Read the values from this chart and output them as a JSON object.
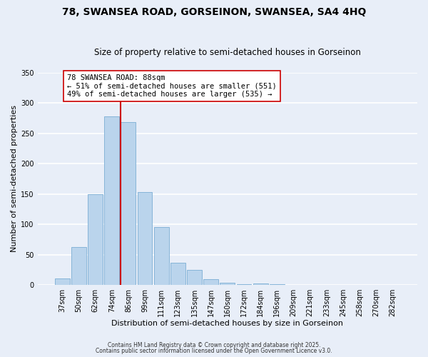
{
  "title": "78, SWANSEA ROAD, GORSEINON, SWANSEA, SA4 4HQ",
  "subtitle": "Size of property relative to semi-detached houses in Gorseinon",
  "xlabel": "Distribution of semi-detached houses by size in Gorseinon",
  "ylabel": "Number of semi-detached properties",
  "bin_labels": [
    "37sqm",
    "50sqm",
    "62sqm",
    "74sqm",
    "86sqm",
    "99sqm",
    "111sqm",
    "123sqm",
    "135sqm",
    "147sqm",
    "160sqm",
    "172sqm",
    "184sqm",
    "196sqm",
    "209sqm",
    "221sqm",
    "233sqm",
    "245sqm",
    "258sqm",
    "270sqm",
    "282sqm"
  ],
  "bar_heights": [
    11,
    63,
    150,
    278,
    268,
    153,
    95,
    36,
    25,
    10,
    4,
    1,
    2,
    1,
    0,
    0,
    0,
    0,
    0,
    0,
    0
  ],
  "bar_color": "#bad4ec",
  "bar_edge_color": "#7aadd4",
  "vline_x_index": 4,
  "vline_color": "#cc0000",
  "annotation_text": "78 SWANSEA ROAD: 88sqm\n← 51% of semi-detached houses are smaller (551)\n49% of semi-detached houses are larger (535) →",
  "annotation_box_edge": "#cc0000",
  "annotation_box_fill": "#ffffff",
  "ylim": [
    0,
    350
  ],
  "yticks": [
    0,
    50,
    100,
    150,
    200,
    250,
    300,
    350
  ],
  "footnote1": "Contains HM Land Registry data © Crown copyright and database right 2025.",
  "footnote2": "Contains public sector information licensed under the Open Government Licence v3.0.",
  "background_color": "#e8eef8",
  "grid_color": "#ffffff",
  "title_fontsize": 10,
  "subtitle_fontsize": 8.5,
  "label_fontsize": 8,
  "tick_fontsize": 7,
  "annot_fontsize": 7.5,
  "footnote_fontsize": 5.5
}
